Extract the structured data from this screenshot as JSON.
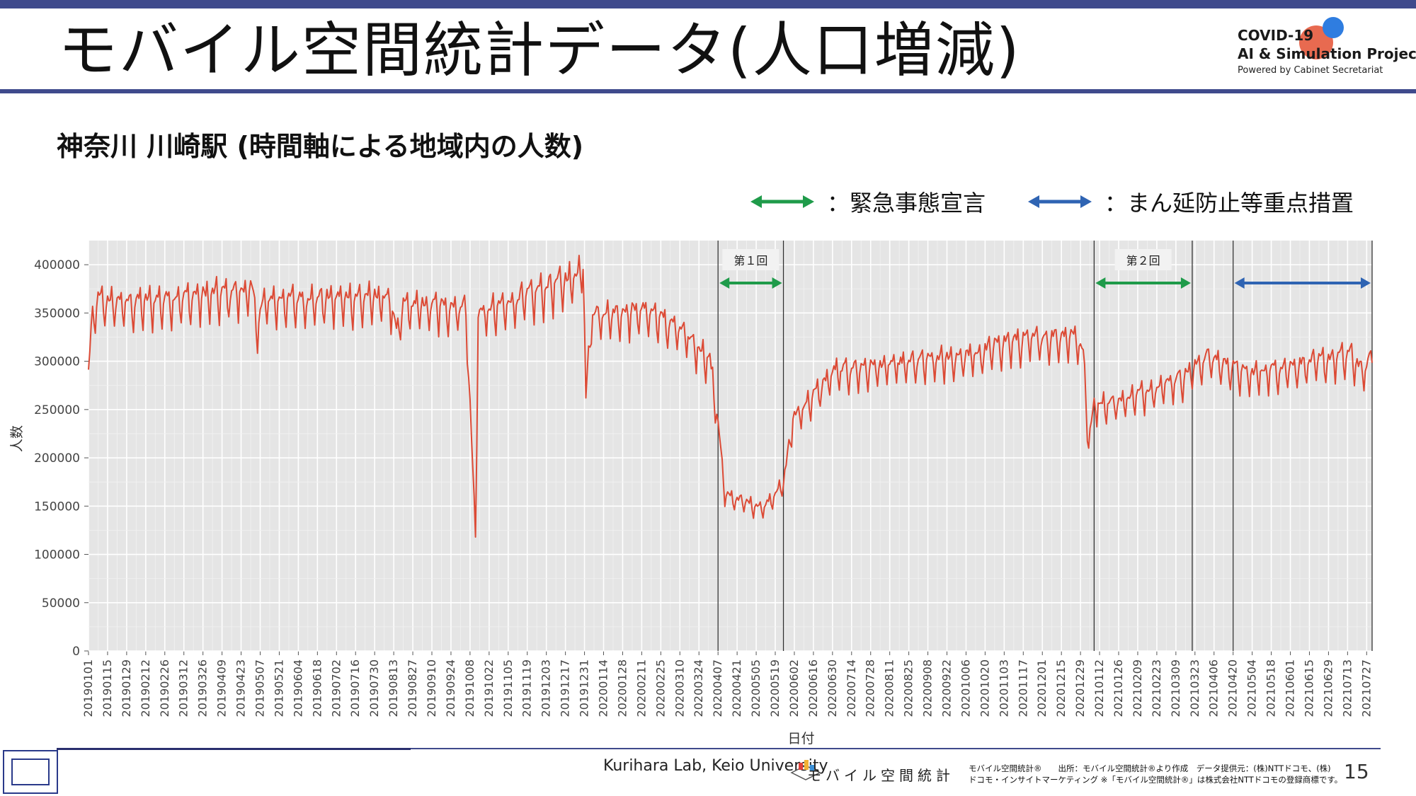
{
  "slide": {
    "title": "モバイル空間統計データ(人口増減)",
    "subtitle": "神奈川 川崎駅 (時間軸による地域内の人数)",
    "logo": {
      "line1": "COVID-19",
      "line2": "AI & Simulation Project",
      "line3": "Powered by Cabinet Secretariat"
    },
    "legend": [
      {
        "label": "：緊急事態宣言",
        "color": "#1f9b4a"
      },
      {
        "label": "：まん延防止等重点措置",
        "color": "#2f64b3"
      }
    ],
    "footer": {
      "lab": "Kurihara Lab, Keio University",
      "mobile_logo_text": "モバイル空間統計",
      "note_line1": "モバイル空間統計®　　出所：モバイル空間統計®より作成　データ提供元：(株)NTTドコモ、(株)",
      "note_line2": "ドコモ・インサイトマーケティング ※「モバイル空間統計®」は株式会社NTTドコモの登録商標です。",
      "page_number": "15"
    }
  },
  "chart_data": {
    "type": "line",
    "xlabel": "日付",
    "ylabel": "人数",
    "ylim": [
      0,
      425000
    ],
    "yticks": [
      0,
      50000,
      100000,
      150000,
      200000,
      250000,
      300000,
      350000,
      400000
    ],
    "ytick_labels": [
      "0",
      "50000",
      "100000",
      "150000",
      "200000",
      "250000",
      "300000",
      "350000",
      "400000"
    ],
    "date_start": "2019-01-01",
    "date_end": "2021-07-31",
    "x_tick_labels": [
      "20190101",
      "20190115",
      "20190129",
      "20190212",
      "20190226",
      "20190312",
      "20190326",
      "20190409",
      "20190423",
      "20190507",
      "20190521",
      "20190604",
      "20190618",
      "20190702",
      "20190716",
      "20190730",
      "20190813",
      "20190827",
      "20190910",
      "20190924",
      "20191008",
      "20191022",
      "20191105",
      "20191119",
      "20191203",
      "20191217",
      "20191231",
      "20200114",
      "20200128",
      "20200211",
      "20200225",
      "20200310",
      "20200324",
      "20200407",
      "20200421",
      "20200505",
      "20200519",
      "20200602",
      "20200616",
      "20200630",
      "20200714",
      "20200728",
      "20200811",
      "20200825",
      "20200908",
      "20200922",
      "20201006",
      "20201020",
      "20201103",
      "20201117",
      "20201201",
      "20201215",
      "20201229",
      "20210112",
      "20210126",
      "20210209",
      "20210223",
      "20210309",
      "20210323",
      "20210406",
      "20210420",
      "20210504",
      "20210518",
      "20210601",
      "20210615",
      "20210629",
      "20210713",
      "20210727"
    ],
    "grid": true,
    "series": [
      {
        "color": "#dc4a35",
        "anchors": [
          [
            "2019-01-01",
            280000
          ],
          [
            "2019-01-03",
            325000
          ],
          [
            "2019-01-07",
            355000
          ],
          [
            "2019-02-01",
            352000
          ],
          [
            "2019-05-01",
            365000
          ],
          [
            "2019-05-05",
            330000
          ],
          [
            "2019-05-10",
            355000
          ],
          [
            "2019-08-10",
            358000
          ],
          [
            "2019-08-15",
            320000
          ],
          [
            "2019-08-20",
            350000
          ],
          [
            "2019-10-05",
            348000
          ],
          [
            "2019-10-12",
            118000
          ],
          [
            "2019-10-14",
            340000
          ],
          [
            "2019-12-25",
            380000
          ],
          [
            "2019-12-30",
            395000
          ],
          [
            "2020-01-01",
            262000
          ],
          [
            "2020-01-05",
            340000
          ],
          [
            "2020-02-15",
            345000
          ],
          [
            "2020-03-10",
            325000
          ],
          [
            "2020-04-01",
            295000
          ],
          [
            "2020-04-07",
            232000
          ],
          [
            "2020-04-12",
            158000
          ],
          [
            "2020-05-10",
            145000
          ],
          [
            "2020-05-25",
            170000
          ],
          [
            "2020-06-01",
            235000
          ],
          [
            "2020-06-20",
            265000
          ],
          [
            "2020-07-01",
            283000
          ],
          [
            "2020-10-15",
            300000
          ],
          [
            "2020-11-01",
            312000
          ],
          [
            "2020-12-25",
            320000
          ],
          [
            "2020-12-31",
            303000
          ],
          [
            "2021-01-04",
            210000
          ],
          [
            "2021-01-08",
            250000
          ],
          [
            "2021-01-25",
            252000
          ],
          [
            "2021-03-15",
            278000
          ],
          [
            "2021-04-01",
            298000
          ],
          [
            "2021-05-01",
            280000
          ],
          [
            "2021-06-01",
            288000
          ],
          [
            "2021-07-15",
            300000
          ],
          [
            "2021-07-25",
            282000
          ],
          [
            "2021-07-31",
            300000
          ]
        ]
      }
    ],
    "periods": [
      {
        "label": "第１回",
        "start": "2020-04-07",
        "end": "2020-05-25",
        "color": "#1f9b4a"
      },
      {
        "label": "第２回",
        "start": "2021-01-08",
        "end": "2021-03-21",
        "color": "#1f9b4a"
      },
      {
        "label": "",
        "start": "2021-04-20",
        "end": "2021-07-31",
        "color": "#2f64b3"
      }
    ]
  }
}
